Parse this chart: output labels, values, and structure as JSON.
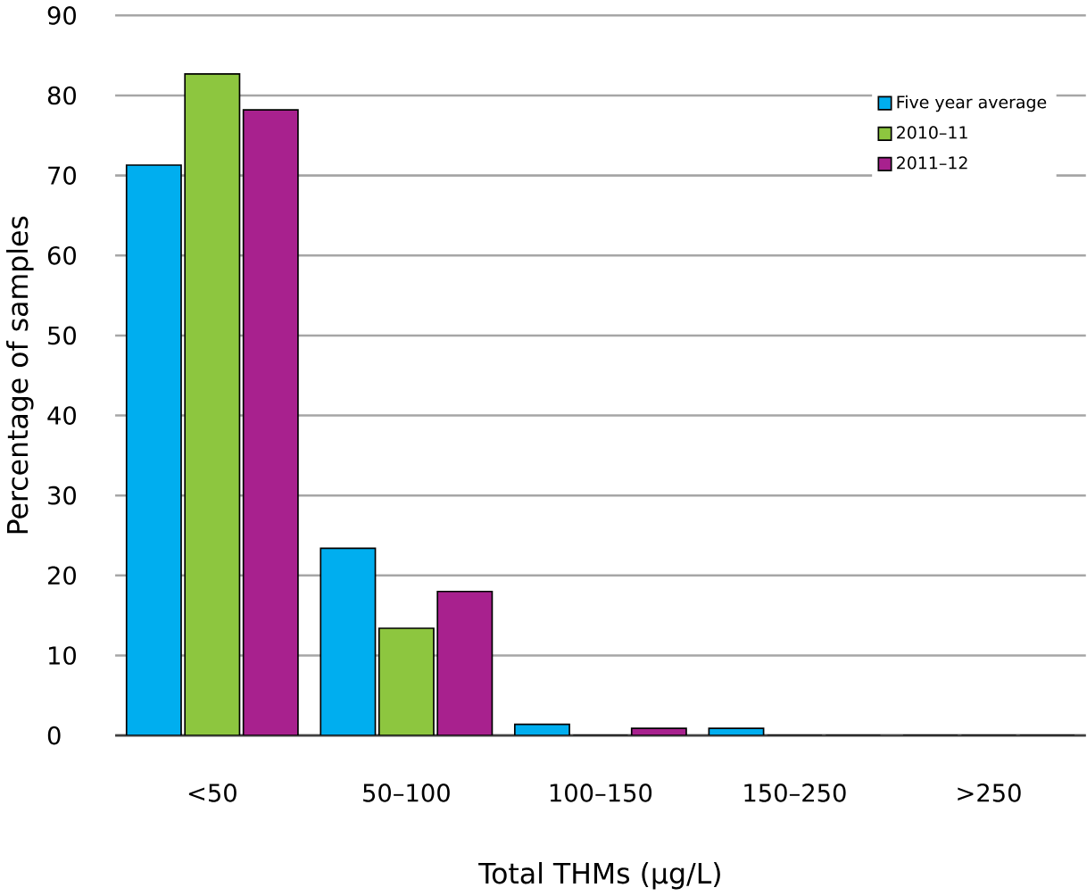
{
  "chart_data": {
    "type": "bar",
    "xlabel": "Total THMs (μg/L)",
    "ylabel": "Percentage  of samples",
    "categories": [
      "<50",
      "50–100",
      "100–150",
      "150–250",
      ">250"
    ],
    "series": [
      {
        "name": "Five year average",
        "color": "#00aeef",
        "values": [
          71.3,
          23.4,
          1.4,
          0.9,
          0
        ]
      },
      {
        "name": "2010–11",
        "color": "#8dc63f",
        "values": [
          82.7,
          13.4,
          0,
          0,
          0
        ]
      },
      {
        "name": "2011–12",
        "color": "#a8218e",
        "values": [
          78.2,
          18.0,
          0.9,
          0,
          0
        ]
      }
    ],
    "ylim": [
      0,
      90
    ],
    "yticks": [
      0,
      10,
      20,
      30,
      40,
      50,
      60,
      70,
      80,
      90
    ],
    "grid": "y",
    "legend": "top right"
  }
}
